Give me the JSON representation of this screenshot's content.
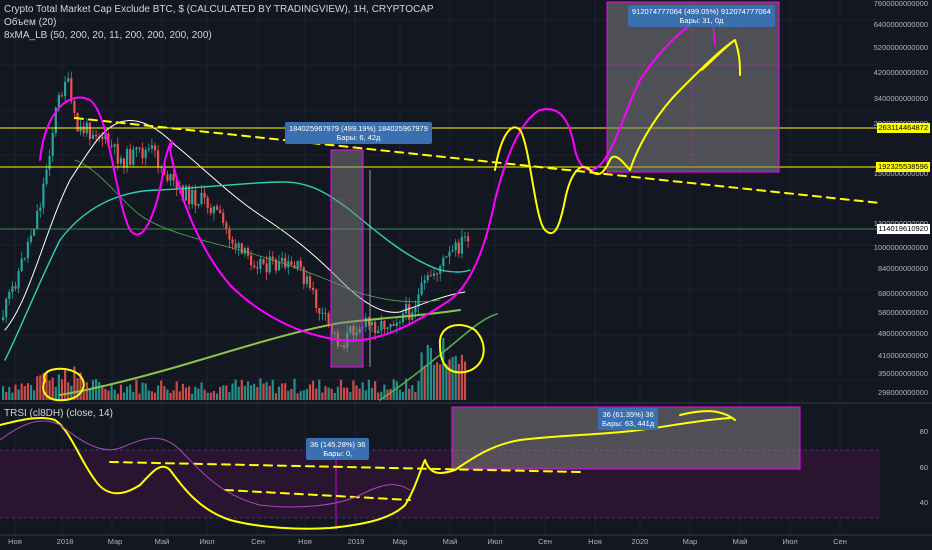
{
  "legend": {
    "symbol": "Crypto Total Market Cap Exclude BTC, $ (CALCULATED BY TRADINGVIEW), 1H, CRYPTOCAP",
    "volume": "Объем (20)",
    "ma": "8xMA_LB (50, 200, 20, 11, 200, 200, 200, 200)",
    "tsi": "TRSI (cl8DH) (close, 14)"
  },
  "colors": {
    "background": "#131722",
    "up_candle": "#26a69a",
    "down_candle": "#ef5350",
    "annotation_yellow": "#ffff00",
    "annotation_magenta": "#ff00ff",
    "ma_white": "#ffffff",
    "ma_teal": "#2ed3b0",
    "ma_olive": "#8bc34a",
    "ma_green": "#4caf50",
    "box_fill": "#808080",
    "callout_blue": "#3a6fb0"
  },
  "price_axis": {
    "labels": [
      "7600000000000",
      "6400000000000",
      "5200000000000",
      "4200000000000",
      "3400000000000",
      "2800000000000",
      "1500000000000",
      "1300000000000",
      "1000000000000",
      "840000000000",
      "680000000000",
      "580000000000",
      "480000000000",
      "410000000000",
      "350000000000",
      "298000000000"
    ],
    "tags": [
      {
        "value": "263114464872",
        "bg": "#ffff00",
        "fg": "#000000"
      },
      {
        "value": "192325538596",
        "bg": "#ffff00",
        "fg": "#000000"
      },
      {
        "value": "114019610920",
        "bg": "#ffffff",
        "fg": "#000000"
      }
    ]
  },
  "tsi_axis": {
    "labels": [
      "80",
      "60",
      "40"
    ]
  },
  "time_axis": {
    "labels": [
      "Ноя",
      "2018",
      "Мар",
      "Май",
      "Июл",
      "Сен",
      "Ноя",
      "2019",
      "Мар",
      "Май",
      "Июл",
      "Сен",
      "Ноя",
      "2020",
      "Мар",
      "Май",
      "Июл",
      "Сен"
    ]
  },
  "callouts": [
    {
      "line1": "184025967979 (499.19%) 184025967979",
      "line2": "Бары: 6, 42д"
    },
    {
      "line1": "912074777064 (499.05%) 912074777064",
      "line2": "Бары: 31, 0д"
    },
    {
      "line1": "36 (145.28%) 36",
      "line2": "Бары: 0,"
    },
    {
      "line1": "36 (61.35%) 36",
      "line2": "Бары: 63, 441д"
    }
  ],
  "chart_data": [
    {
      "type": "candlestick",
      "title": "Crypto Total Market Cap Exclude BTC, $ (CALCULATED BY TRADINGVIEW), 1H, CRYPTOCAP",
      "x": [
        "Ноя",
        "2018",
        "Мар",
        "Май",
        "Июл",
        "Сен",
        "Ноя",
        "2019",
        "Мар",
        "Май"
      ],
      "close_approx": [
        200000000000.0,
        420000000000.0,
        340000000000.0,
        280000000000.0,
        150000000000.0,
        110000000000.0,
        70000000000.0,
        45000000000.0,
        60000000000.0,
        114000000000.0
      ],
      "y_scale": "log",
      "horizontal_levels": [
        263114464872,
        192325538596,
        114019610920
      ],
      "last_value": 114019610920
    },
    {
      "type": "line",
      "title": "TRSI (cl8DH) (close, 14)",
      "yticks": [
        40,
        60,
        80
      ],
      "box_label": "36 (61.35%) 36"
    }
  ]
}
